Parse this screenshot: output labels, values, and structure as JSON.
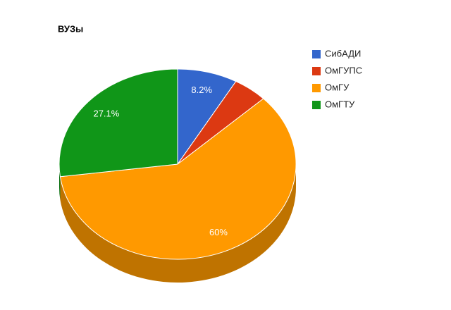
{
  "chart_data": {
    "type": "pie3d",
    "title": "ВУЗы",
    "categories": [
      "СибАДИ",
      "ОмГУПС",
      "ОмГУ",
      "ОмГТУ"
    ],
    "values": [
      8.2,
      4.7,
      60,
      27.1
    ],
    "value_labels": [
      "8.2%",
      null,
      "60%",
      "27.1%"
    ],
    "colors": [
      "#3366cc",
      "#dc3912",
      "#ff9900",
      "#109618"
    ],
    "legend": "right"
  }
}
